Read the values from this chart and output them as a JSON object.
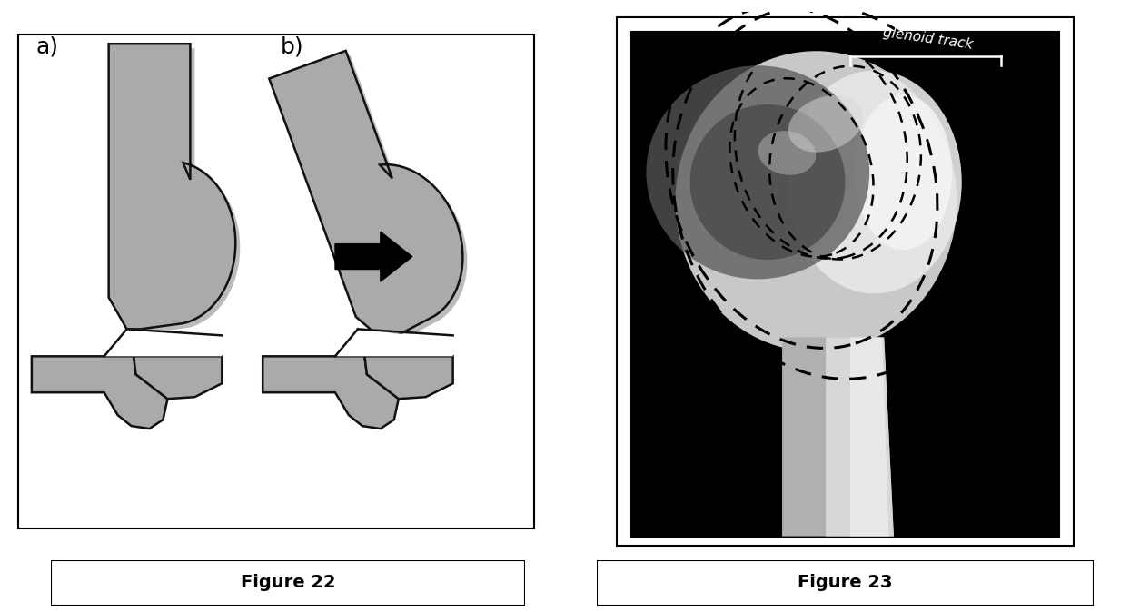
{
  "fig_width": 12.44,
  "fig_height": 6.74,
  "dpi": 100,
  "background_color": "#ffffff",
  "figure22_label": "Figure 22",
  "figure23_label": "Figure 23",
  "gray_color": "#aaaaaa",
  "outline_color": "#111111",
  "shadow_color": "#bbbbbb",
  "glenoid_track_text": "glenoid track",
  "label_a": "a)",
  "label_b": "b)"
}
